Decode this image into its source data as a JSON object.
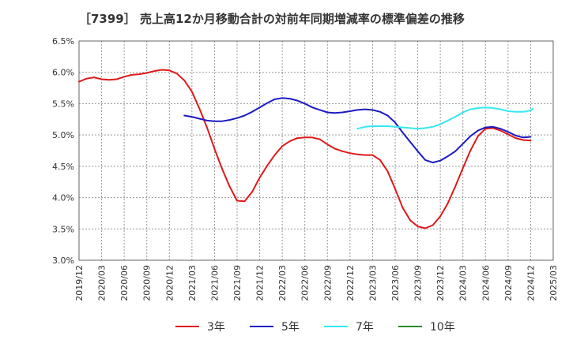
{
  "chart_data": {
    "type": "line",
    "title": "［7399］ 売上高12か月移動合計の対前年同期増減率の標準偏差の推移",
    "xlabel": "",
    "ylabel": "",
    "ylim": [
      3.0,
      6.5
    ],
    "y_ticks": [
      "6.5%",
      "6.0%",
      "5.5%",
      "5.0%",
      "4.5%",
      "4.0%",
      "3.5%",
      "3.0%"
    ],
    "x_ticks": [
      "2019/12",
      "2020/03",
      "2020/06",
      "2020/09",
      "2020/12",
      "2021/03",
      "2021/06",
      "2021/09",
      "2021/12",
      "2022/03",
      "2022/06",
      "2022/09",
      "2022/12",
      "2023/03",
      "2023/06",
      "2023/09",
      "2023/12",
      "2024/03",
      "2024/06",
      "2024/09",
      "2024/12",
      "2025/03"
    ],
    "grid": true,
    "legend_position": "bottom",
    "series": [
      {
        "name": "3年",
        "color": "#e0191b",
        "points": [
          [
            "2019/12",
            5.85
          ],
          [
            "2020/01",
            5.9
          ],
          [
            "2020/02",
            5.92
          ],
          [
            "2020/03",
            5.89
          ],
          [
            "2020/04",
            5.88
          ],
          [
            "2020/05",
            5.89
          ],
          [
            "2020/06",
            5.93
          ],
          [
            "2020/07",
            5.96
          ],
          [
            "2020/08",
            5.97
          ],
          [
            "2020/09",
            5.99
          ],
          [
            "2020/10",
            6.02
          ],
          [
            "2020/11",
            6.04
          ],
          [
            "2020/12",
            6.03
          ],
          [
            "2021/01",
            5.98
          ],
          [
            "2021/02",
            5.87
          ],
          [
            "2021/03",
            5.69
          ],
          [
            "2021/04",
            5.42
          ],
          [
            "2021/05",
            5.12
          ],
          [
            "2021/06",
            4.78
          ],
          [
            "2021/07",
            4.46
          ],
          [
            "2021/08",
            4.18
          ],
          [
            "2021/09",
            3.95
          ],
          [
            "2021/10",
            3.94
          ],
          [
            "2021/11",
            4.09
          ],
          [
            "2021/12",
            4.32
          ],
          [
            "2022/01",
            4.51
          ],
          [
            "2022/02",
            4.68
          ],
          [
            "2022/03",
            4.82
          ],
          [
            "2022/04",
            4.9
          ],
          [
            "2022/05",
            4.95
          ],
          [
            "2022/06",
            4.96
          ],
          [
            "2022/07",
            4.96
          ],
          [
            "2022/08",
            4.93
          ],
          [
            "2022/09",
            4.85
          ],
          [
            "2022/10",
            4.78
          ],
          [
            "2022/11",
            4.74
          ],
          [
            "2022/12",
            4.71
          ],
          [
            "2023/01",
            4.69
          ],
          [
            "2023/02",
            4.68
          ],
          [
            "2023/03",
            4.68
          ],
          [
            "2023/04",
            4.6
          ],
          [
            "2023/05",
            4.42
          ],
          [
            "2023/06",
            4.14
          ],
          [
            "2023/07",
            3.84
          ],
          [
            "2023/08",
            3.64
          ],
          [
            "2023/09",
            3.54
          ],
          [
            "2023/10",
            3.51
          ],
          [
            "2023/11",
            3.56
          ],
          [
            "2023/12",
            3.7
          ],
          [
            "2024/01",
            3.91
          ],
          [
            "2024/02",
            4.18
          ],
          [
            "2024/03",
            4.47
          ],
          [
            "2024/04",
            4.75
          ],
          [
            "2024/05",
            4.98
          ],
          [
            "2024/06",
            5.1
          ],
          [
            "2024/07",
            5.11
          ],
          [
            "2024/08",
            5.07
          ],
          [
            "2024/09",
            5.01
          ],
          [
            "2024/10",
            4.95
          ],
          [
            "2024/11",
            4.92
          ],
          [
            "2024/12",
            4.91
          ]
        ]
      },
      {
        "name": "5年",
        "color": "#1c1ac2",
        "points": [
          [
            "2021/02",
            5.31
          ],
          [
            "2021/03",
            5.29
          ],
          [
            "2021/04",
            5.26
          ],
          [
            "2021/05",
            5.23
          ],
          [
            "2021/06",
            5.22
          ],
          [
            "2021/07",
            5.22
          ],
          [
            "2021/08",
            5.24
          ],
          [
            "2021/09",
            5.27
          ],
          [
            "2021/10",
            5.31
          ],
          [
            "2021/11",
            5.37
          ],
          [
            "2021/12",
            5.44
          ],
          [
            "2022/01",
            5.51
          ],
          [
            "2022/02",
            5.57
          ],
          [
            "2022/03",
            5.59
          ],
          [
            "2022/04",
            5.58
          ],
          [
            "2022/05",
            5.55
          ],
          [
            "2022/06",
            5.5
          ],
          [
            "2022/07",
            5.44
          ],
          [
            "2022/08",
            5.4
          ],
          [
            "2022/09",
            5.36
          ],
          [
            "2022/10",
            5.35
          ],
          [
            "2022/11",
            5.36
          ],
          [
            "2022/12",
            5.38
          ],
          [
            "2023/01",
            5.4
          ],
          [
            "2023/02",
            5.41
          ],
          [
            "2023/03",
            5.4
          ],
          [
            "2023/04",
            5.37
          ],
          [
            "2023/05",
            5.31
          ],
          [
            "2023/06",
            5.2
          ],
          [
            "2023/07",
            5.04
          ],
          [
            "2023/08",
            4.89
          ],
          [
            "2023/09",
            4.74
          ],
          [
            "2023/10",
            4.6
          ],
          [
            "2023/11",
            4.56
          ],
          [
            "2023/12",
            4.59
          ],
          [
            "2024/01",
            4.66
          ],
          [
            "2024/02",
            4.74
          ],
          [
            "2024/03",
            4.86
          ],
          [
            "2024/04",
            4.98
          ],
          [
            "2024/05",
            5.07
          ],
          [
            "2024/06",
            5.12
          ],
          [
            "2024/07",
            5.13
          ],
          [
            "2024/08",
            5.1
          ],
          [
            "2024/09",
            5.05
          ],
          [
            "2024/10",
            4.99
          ],
          [
            "2024/11",
            4.96
          ],
          [
            "2024/12",
            4.97
          ]
        ]
      },
      {
        "name": "7年",
        "color": "#35e8f0",
        "points": [
          [
            "2023/01",
            5.1
          ],
          [
            "2023/02",
            5.13
          ],
          [
            "2023/03",
            5.14
          ],
          [
            "2023/04",
            5.14
          ],
          [
            "2023/05",
            5.14
          ],
          [
            "2023/06",
            5.13
          ],
          [
            "2023/07",
            5.12
          ],
          [
            "2023/08",
            5.11
          ],
          [
            "2023/09",
            5.1
          ],
          [
            "2023/10",
            5.11
          ],
          [
            "2023/11",
            5.13
          ],
          [
            "2023/12",
            5.17
          ],
          [
            "2024/01",
            5.23
          ],
          [
            "2024/02",
            5.29
          ],
          [
            "2024/03",
            5.36
          ],
          [
            "2024/04",
            5.41
          ],
          [
            "2024/05",
            5.43
          ],
          [
            "2024/06",
            5.44
          ],
          [
            "2024/07",
            5.43
          ],
          [
            "2024/08",
            5.41
          ],
          [
            "2024/09",
            5.38
          ],
          [
            "2024/10",
            5.37
          ],
          [
            "2024/11",
            5.37
          ],
          [
            "2024/12",
            5.39
          ],
          [
            "2024/12b",
            5.42
          ]
        ]
      },
      {
        "name": "10年",
        "color": "#2a8a2a",
        "points": []
      }
    ]
  }
}
